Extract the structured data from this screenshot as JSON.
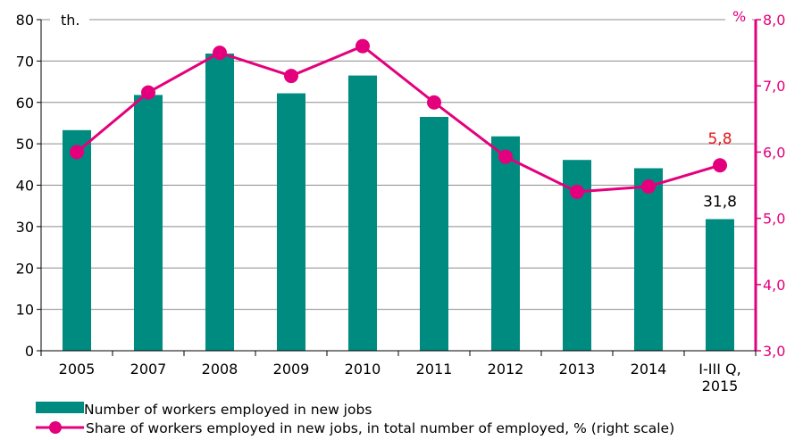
{
  "chart_data": {
    "type": "bar",
    "categories": [
      "2005",
      "2007",
      "2008",
      "2009",
      "2010",
      "2011",
      "2012",
      "2013",
      "2014",
      "I-III Q,\n2015"
    ],
    "series": [
      {
        "name": "Number of workers employed in new jobs",
        "type": "bar",
        "axis": "left",
        "values": [
          53.3,
          61.8,
          71.8,
          62.2,
          66.5,
          56.5,
          51.8,
          46.1,
          44.1,
          31.8
        ],
        "color": "#008b80"
      },
      {
        "name": "Share of workers employed in new jobs, in total number of employed, % (right scale)",
        "type": "line",
        "axis": "right",
        "values": [
          6.0,
          6.9,
          7.5,
          7.15,
          7.6,
          6.75,
          5.93,
          5.4,
          5.48,
          5.8
        ],
        "color": "#e4007c"
      }
    ],
    "y_left": {
      "unit": "th.",
      "ylim": [
        0,
        80
      ],
      "ticks": [
        "0",
        "10",
        "20",
        "30",
        "40",
        "50",
        "60",
        "70",
        "80"
      ]
    },
    "y_right": {
      "unit": "%",
      "ylim": [
        3.0,
        8.0
      ],
      "ticks": [
        "3,0",
        "4,0",
        "5,0",
        "6,0",
        "7,0",
        "8,0"
      ]
    },
    "data_labels": [
      {
        "series": 0,
        "index": 9,
        "text": "31,8"
      },
      {
        "series": 1,
        "index": 9,
        "text": "5,8"
      }
    ],
    "grid": true,
    "legend_position": "bottom"
  }
}
